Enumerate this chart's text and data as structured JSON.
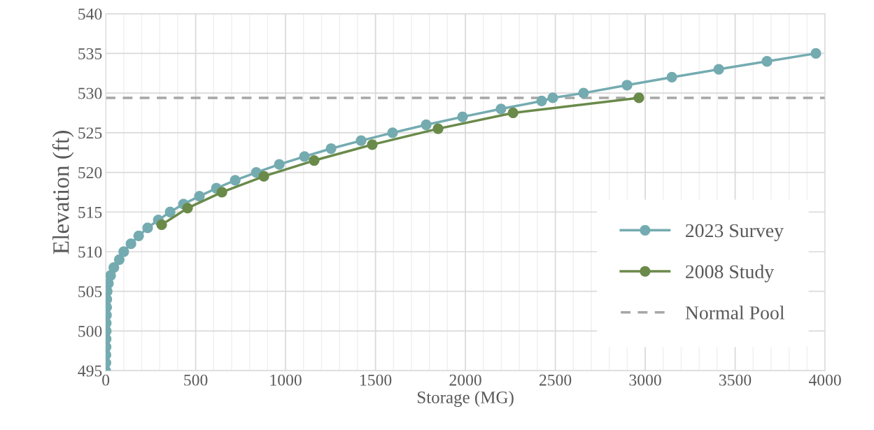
{
  "chart_data": {
    "type": "line",
    "xlabel": "Storage (MG)",
    "ylabel": "Elevation (ft)",
    "xlim": [
      0,
      4000
    ],
    "xticks": [
      0,
      500,
      1000,
      1500,
      2000,
      2500,
      3000,
      3500,
      4000
    ],
    "ylim": [
      495,
      540
    ],
    "yticks": [
      495,
      500,
      505,
      510,
      515,
      520,
      525,
      530,
      535,
      540
    ],
    "grid": true,
    "legend": "bottom right",
    "marker": "circle",
    "line_style": "solid",
    "series": [
      {
        "name": "2023 Survey",
        "color": "#74abb0",
        "x": [
          0,
          1,
          1,
          2,
          2,
          3,
          3,
          4,
          5,
          6,
          8,
          15,
          27,
          45,
          75,
          100,
          140,
          183,
          233,
          292,
          358,
          432,
          521,
          615,
          720,
          837,
          965,
          1105,
          1253,
          1420,
          1595,
          1782,
          1984,
          2198,
          2424,
          2486,
          2657,
          2899,
          3148,
          3409,
          3677,
          3949
        ],
        "values": [
          495,
          496,
          497,
          498,
          499,
          500,
          501,
          502,
          503,
          504,
          505,
          506,
          507,
          508,
          509,
          510,
          511,
          512,
          513,
          514,
          515,
          516,
          517,
          518,
          519,
          520,
          521,
          522,
          523,
          524,
          525,
          526,
          527,
          528,
          529,
          529.4,
          530,
          531,
          532,
          533,
          534,
          535
        ]
      },
      {
        "name": "2008 Study",
        "color": "#6a8a4a",
        "x": [
          311,
          455,
          646,
          879,
          1159,
          1482,
          1848,
          2265,
          2965
        ],
        "values": [
          513.4,
          515.5,
          517.5,
          519.5,
          521.5,
          523.5,
          525.5,
          527.5,
          529.4
        ]
      }
    ],
    "ref_lines": [
      {
        "axis": "y",
        "value": 529.4,
        "label": "Normal Pool",
        "color": "#a6a6a6",
        "line_style": "dashed"
      }
    ]
  }
}
